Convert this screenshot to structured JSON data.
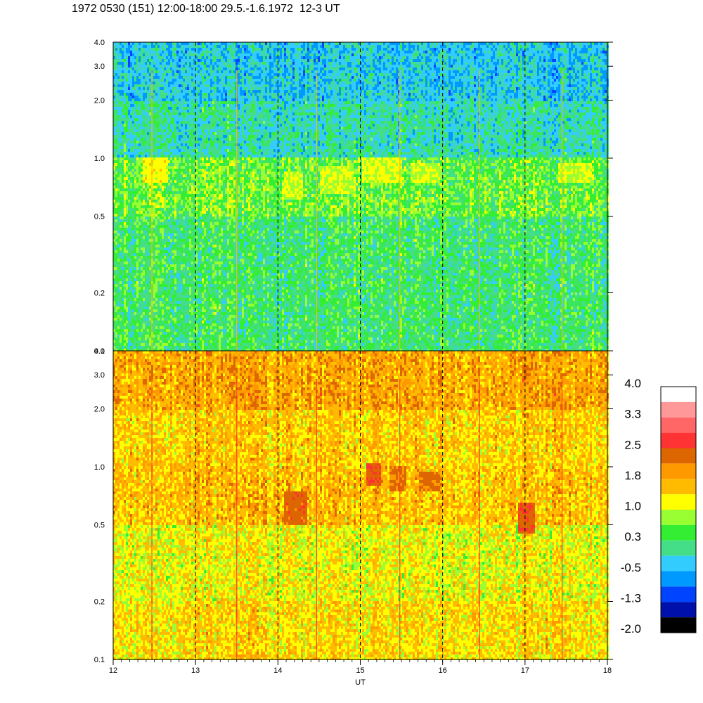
{
  "title": "1972 0530 (151) 12:00-18:00 29.5.-1.6.1972  12-3 UT",
  "chart_data": [
    {
      "type": "heatmap",
      "panel": "upper",
      "x": {
        "range": [
          12,
          18
        ],
        "ticks": [
          12,
          13,
          14,
          15,
          16,
          17,
          18
        ],
        "label": ""
      },
      "y": {
        "range": [
          0.1,
          4.0
        ],
        "scale": "log",
        "ticks": [
          0.1,
          0.2,
          0.5,
          1.0,
          2.0,
          3.0,
          4.0
        ],
        "tick_labels": [
          "0.1",
          "0.2",
          "0.5",
          "1.0",
          "2.0",
          "3.0",
          "4.0"
        ]
      },
      "dashed_vertical_lines_at": [
        13,
        14,
        15,
        16,
        17
      ],
      "dominant_level_by_y": [
        {
          "y_max": 0.2,
          "level": 0.3
        },
        {
          "y_max": 0.5,
          "level": 0.3
        },
        {
          "y_max": 1.0,
          "level": 0.6
        },
        {
          "y_max": 2.0,
          "level": 0.0
        },
        {
          "y_max": 4.0,
          "level": -0.3
        }
      ],
      "bright_bands": [
        {
          "x": [
            12.35,
            12.65
          ],
          "y": [
            0.75,
            1.0
          ],
          "level": 1.2
        },
        {
          "x": [
            14.05,
            14.3
          ],
          "y": [
            0.6,
            0.85
          ],
          "level": 1.0
        },
        {
          "x": [
            14.5,
            14.9
          ],
          "y": [
            0.65,
            0.9
          ],
          "level": 1.0
        },
        {
          "x": [
            15.0,
            15.5
          ],
          "y": [
            0.75,
            1.0
          ],
          "level": 1.1
        },
        {
          "x": [
            15.6,
            15.95
          ],
          "y": [
            0.75,
            0.95
          ],
          "level": 1.0
        },
        {
          "x": [
            17.4,
            17.8
          ],
          "y": [
            0.75,
            0.95
          ],
          "level": 1.0
        }
      ]
    },
    {
      "type": "heatmap",
      "panel": "lower",
      "x": {
        "range": [
          12,
          18
        ],
        "ticks": [
          12,
          13,
          14,
          15,
          16,
          17,
          18
        ],
        "tick_labels": [
          "12",
          "13",
          "14",
          "15",
          "16",
          "17",
          "18"
        ],
        "label": "UT"
      },
      "y": {
        "range": [
          0.1,
          4.0
        ],
        "scale": "log",
        "ticks": [
          0.1,
          0.2,
          0.5,
          1.0,
          2.0,
          3.0,
          4.0
        ],
        "tick_labels": [
          "0.1",
          "0.2",
          "0.5",
          "1.0",
          "2.0",
          "3.0",
          "4.0"
        ]
      },
      "dashed_vertical_lines_at": [
        13,
        14,
        15,
        16,
        17
      ],
      "dominant_level_by_y": [
        {
          "y_max": 0.2,
          "level": 1.4
        },
        {
          "y_max": 0.5,
          "level": 1.2
        },
        {
          "y_max": 1.0,
          "level": 1.6
        },
        {
          "y_max": 2.0,
          "level": 1.5
        },
        {
          "y_max": 4.0,
          "level": 1.8
        }
      ],
      "bright_bands": [
        {
          "x": [
            14.05,
            14.35
          ],
          "y": [
            0.5,
            0.75
          ],
          "level": 2.3
        },
        {
          "x": [
            15.05,
            15.25
          ],
          "y": [
            0.8,
            1.05
          ],
          "level": 2.4
        },
        {
          "x": [
            15.35,
            15.55
          ],
          "y": [
            0.75,
            1.0
          ],
          "level": 2.2
        },
        {
          "x": [
            15.7,
            15.95
          ],
          "y": [
            0.75,
            0.95
          ],
          "level": 2.2
        },
        {
          "x": [
            16.9,
            17.1
          ],
          "y": [
            0.45,
            0.65
          ],
          "level": 2.4
        }
      ]
    }
  ],
  "colorbar": {
    "labels": [
      "4.0",
      "3.3",
      "2.5",
      "1.8",
      "1.0",
      "0.3",
      "-0.5",
      "-1.3",
      "-2.0"
    ],
    "levels": [
      {
        "max": -1.65,
        "color": "#000000"
      },
      {
        "max": -1.3,
        "color": "#0010aa"
      },
      {
        "max": -0.9,
        "color": "#0044ff"
      },
      {
        "max": -0.5,
        "color": "#0099ff"
      },
      {
        "max": -0.1,
        "color": "#33ccff"
      },
      {
        "max": 0.3,
        "color": "#44dd88"
      },
      {
        "max": 0.65,
        "color": "#33ee33"
      },
      {
        "max": 1.0,
        "color": "#99ff33"
      },
      {
        "max": 1.4,
        "color": "#ffff00"
      },
      {
        "max": 1.8,
        "color": "#ffbb00"
      },
      {
        "max": 2.1,
        "color": "#ff9900"
      },
      {
        "max": 2.5,
        "color": "#dd6600"
      },
      {
        "max": 2.9,
        "color": "#ff3333"
      },
      {
        "max": 3.3,
        "color": "#ff6666"
      },
      {
        "max": 3.65,
        "color": "#ff9999"
      },
      {
        "max": 99,
        "color": "#ffffff"
      }
    ]
  }
}
